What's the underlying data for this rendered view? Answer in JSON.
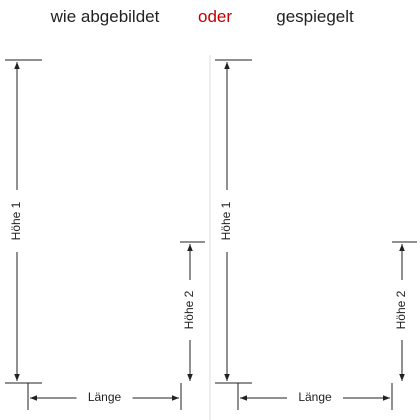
{
  "header": {
    "left": "wie abgebildet",
    "middle": "oder",
    "right": "gespiegelt"
  },
  "panels": [
    {
      "height1": "Höhe 1",
      "height2": "Höhe 2",
      "length": "Länge"
    },
    {
      "height1": "Höhe 1",
      "height2": "Höhe 2",
      "length": "Länge"
    }
  ]
}
